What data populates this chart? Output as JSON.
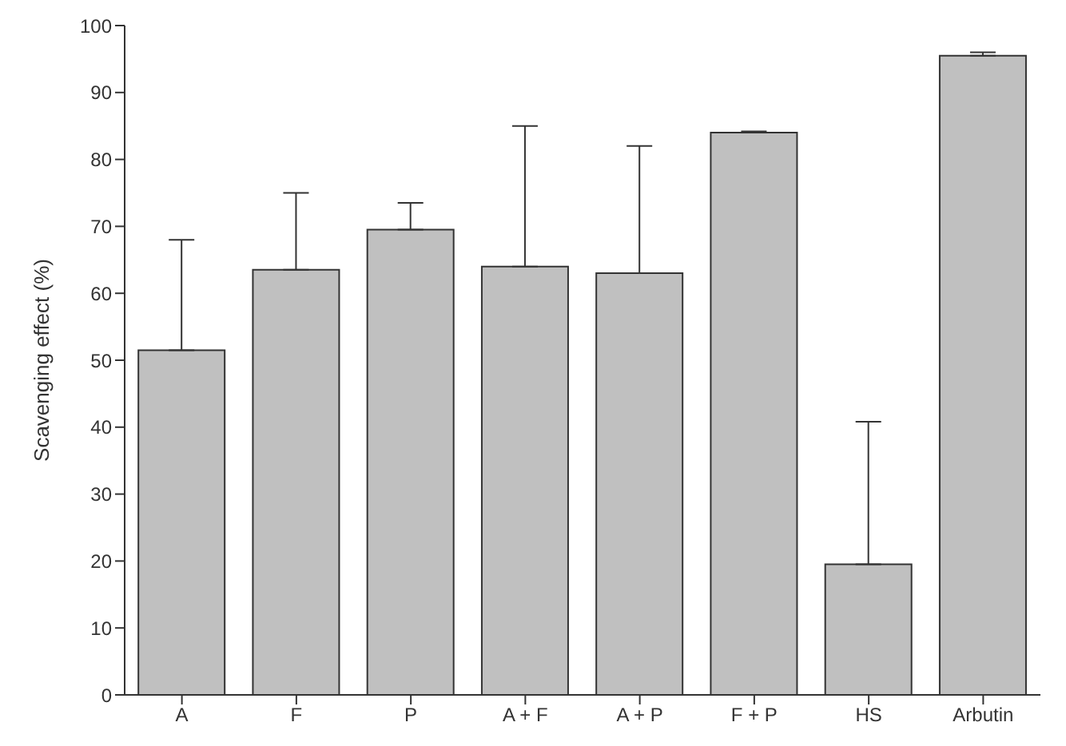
{
  "chart_data": {
    "type": "bar",
    "ylabel": "Scavenging effect (%)",
    "categories": [
      "A",
      "F",
      "P",
      "A + F",
      "A + P",
      "F + P",
      "HS",
      "Arbutin"
    ],
    "values": [
      51.5,
      63.5,
      69.5,
      64,
      63,
      84,
      19.5,
      95.5
    ],
    "errors": [
      [
        51.5,
        68
      ],
      [
        63.5,
        75
      ],
      [
        69.5,
        73.5
      ],
      [
        64,
        85
      ],
      [
        63,
        82
      ],
      [
        84,
        84.2
      ],
      [
        19.5,
        40.8
      ],
      [
        95.5,
        96
      ]
    ],
    "color": "#c0c0c0",
    "ylim": [
      0,
      100
    ],
    "yticks": [
      0,
      10,
      20,
      30,
      40,
      50,
      60,
      70,
      80,
      90,
      100
    ],
    "grid": false
  }
}
